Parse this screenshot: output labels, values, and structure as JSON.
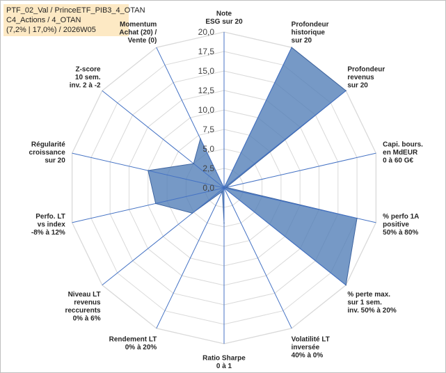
{
  "legend_box": {
    "line1": "PTF_02_Val / PrinceETF_PIB3_4_OTAN",
    "line2": "C4_Actions / 4_OTAN",
    "line3": "(7,2% | 17,0%) / 2026W05"
  },
  "chart_data": {
    "type": "radar",
    "r_range": [
      0,
      20
    ],
    "r_ticks": [
      "0,0",
      "2,5",
      "5,0",
      "7,5",
      "10,0",
      "12,5",
      "15,0",
      "17,5",
      "20,0"
    ],
    "gridlines": true,
    "axes": [
      {
        "label": [
          "Note",
          "ESG sur 20"
        ],
        "value": 0
      },
      {
        "label": [
          "Profondeur",
          "historique",
          "sur 20"
        ],
        "value": 20
      },
      {
        "label": [
          "Profondeur",
          "revenus",
          "sur 20"
        ],
        "value": 20
      },
      {
        "label": [
          "Capi. bours.",
          "en MdEUR",
          "0 à 60 G€"
        ],
        "value": 0.3
      },
      {
        "label": [
          "% perfo 1A",
          "positive",
          "50% à 80%"
        ],
        "value": 17.5
      },
      {
        "label": [
          "% perte max.",
          "sur 1 sem.",
          "inv. 50% à 20%"
        ],
        "value": 20
      },
      {
        "label": [
          "Volatilité LT",
          "inversée",
          "40% à 0%"
        ],
        "value": 0
      },
      {
        "label": [
          "Ratio Sharpe",
          "0 à 1"
        ],
        "value": 4.5
      },
      {
        "label": [
          "Rendement LT",
          "0% à 20%"
        ],
        "value": 0.5
      },
      {
        "label": [
          "Niveau LT",
          "revenus",
          "reccurents",
          "0% à 6%"
        ],
        "value": 5.2
      },
      {
        "label": [
          "Perfo. LT",
          "vs index",
          "-8% à 12%"
        ],
        "value": 9
      },
      {
        "label": [
          "Régularité",
          "croissance",
          "sur 20"
        ],
        "value": 10
      },
      {
        "label": [
          "Z-score",
          "10 sem.",
          "inv. 2 à -2"
        ],
        "value": 5
      },
      {
        "label": [
          "Momentum",
          "Achat (20) /",
          "Vente (0)"
        ],
        "value": 7
      }
    ],
    "series_color": "#4f7cb6",
    "grid_color": "#d9d9d9",
    "spoke_color": "#4472c4"
  }
}
